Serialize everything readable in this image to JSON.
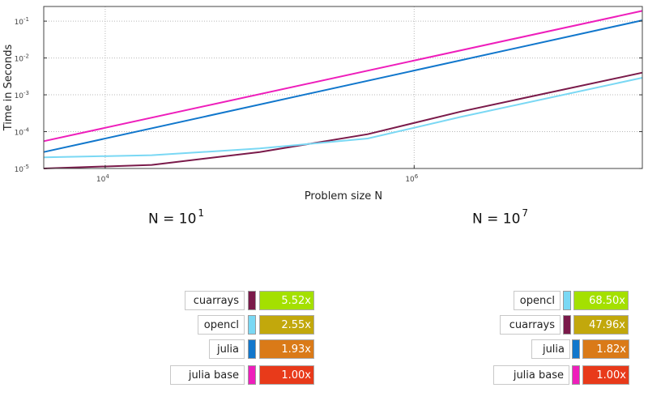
{
  "chart_data": {
    "type": "line",
    "xlabel": "Problem size N",
    "ylabel": "Time in Seconds",
    "xscale": "log",
    "yscale": "log",
    "xlim": [
      4000,
      30000000
    ],
    "ylim": [
      1e-05,
      0.25
    ],
    "grid": true,
    "x_ticks": [
      {
        "value": 10000,
        "label": "10",
        "exp": "4"
      },
      {
        "value": 1000000,
        "label": "10",
        "exp": "6"
      }
    ],
    "y_ticks": [
      {
        "value": 1e-05,
        "label": "10",
        "exp": "-5"
      },
      {
        "value": 0.0001,
        "label": "10",
        "exp": "-4"
      },
      {
        "value": 0.001,
        "label": "10",
        "exp": "-3"
      },
      {
        "value": 0.01,
        "label": "10",
        "exp": "-2"
      },
      {
        "value": 0.1,
        "label": "10",
        "exp": "-1"
      }
    ],
    "series": [
      {
        "color": "#ee1ebb",
        "x": [
          4000,
          30000000
        ],
        "y": [
          5.5e-05,
          0.19
        ]
      },
      {
        "color": "#1177cc",
        "x": [
          4000,
          30000000
        ],
        "y": [
          2.8e-05,
          0.105
        ]
      },
      {
        "color": "#7a1a4a",
        "x": [
          4000,
          20000,
          100000,
          500000,
          2000000,
          30000000
        ],
        "y": [
          1e-05,
          1.25e-05,
          2.8e-05,
          8.5e-05,
          0.00035,
          0.004
        ]
      },
      {
        "color": "#7ad8f4",
        "x": [
          4000,
          20000,
          100000,
          500000,
          2000000,
          30000000
        ],
        "y": [
          2e-05,
          2.3e-05,
          3.5e-05,
          6.5e-05,
          0.00025,
          0.0029
        ]
      }
    ]
  },
  "panels": [
    {
      "n_base": "N = 10",
      "n_exp": "1",
      "rows": [
        {
          "name": "cuarrays",
          "swatch": "#7a1a4a",
          "speedup": "5.52x",
          "speed_color": "#a4e000"
        },
        {
          "name": "opencl",
          "swatch": "#7ad8f4",
          "speedup": "2.55x",
          "speed_color": "#c2a80c"
        },
        {
          "name": "julia",
          "swatch": "#1177cc",
          "speedup": "1.93x",
          "speed_color": "#da7a18"
        },
        {
          "name": "julia base",
          "swatch": "#ee1ebb",
          "speedup": "1.00x",
          "speed_color": "#e83a1a"
        }
      ]
    },
    {
      "n_base": "N = 10",
      "n_exp": "7",
      "rows": [
        {
          "name": "opencl",
          "swatch": "#7ad8f4",
          "speedup": "68.50x",
          "speed_color": "#a4e000"
        },
        {
          "name": "cuarrays",
          "swatch": "#7a1a4a",
          "speedup": "47.96x",
          "speed_color": "#c2a80c"
        },
        {
          "name": "julia",
          "swatch": "#1177cc",
          "speedup": "1.82x",
          "speed_color": "#da7a18"
        },
        {
          "name": "julia base",
          "swatch": "#ee1ebb",
          "speedup": "1.00x",
          "speed_color": "#e83a1a"
        }
      ]
    }
  ]
}
